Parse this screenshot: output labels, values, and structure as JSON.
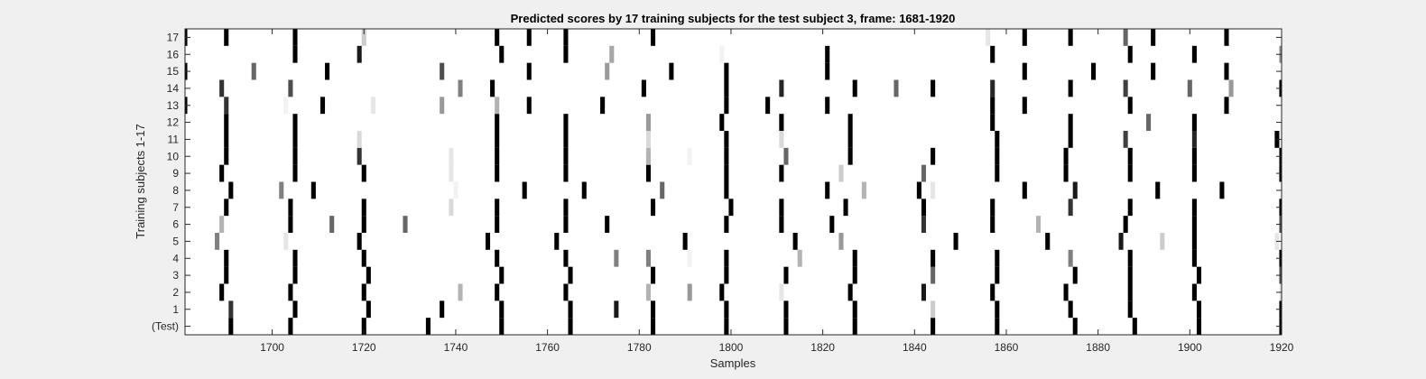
{
  "chart_data": {
    "type": "heatmap",
    "title": "Predicted scores by 17 training subjects for the test subject 3, frame: 1681-1920",
    "xlabel": "Samples",
    "ylabel": "Training subjects 1-17",
    "xlim": [
      1681,
      1920
    ],
    "x_ticks": [
      1700,
      1720,
      1740,
      1760,
      1780,
      1800,
      1820,
      1840,
      1860,
      1880,
      1900,
      1920
    ],
    "y_tick_labels": [
      "(Test)",
      "1",
      "2",
      "3",
      "4",
      "5",
      "6",
      "7",
      "8",
      "9",
      "10",
      "11",
      "12",
      "13",
      "14",
      "15",
      "16",
      "17"
    ],
    "colormap": "gray (white = 0, black = 1)",
    "grid": false,
    "rows": [
      {
        "label": "(Test)",
        "marks": [
          [
            1691,
            1.0
          ],
          [
            1704,
            1.0
          ],
          [
            1720,
            1.0
          ],
          [
            1734,
            1.0
          ],
          [
            1750,
            1.0
          ],
          [
            1765,
            1.0
          ],
          [
            1783,
            1.0
          ],
          [
            1799,
            1.0
          ],
          [
            1812,
            1.0
          ],
          [
            1827,
            1.0
          ],
          [
            1844,
            1.0
          ],
          [
            1858,
            1.0
          ],
          [
            1875,
            1.0
          ],
          [
            1888,
            1.0
          ],
          [
            1902,
            1.0
          ],
          [
            1920,
            1.0
          ]
        ]
      },
      {
        "label": "1",
        "marks": [
          [
            1691,
            0.8
          ],
          [
            1705,
            1.0
          ],
          [
            1721,
            1.0
          ],
          [
            1737,
            1.0
          ],
          [
            1750,
            1.0
          ],
          [
            1765,
            1.0
          ],
          [
            1775,
            0.9
          ],
          [
            1783,
            1.0
          ],
          [
            1799,
            1.0
          ],
          [
            1812,
            1.0
          ],
          [
            1827,
            1.0
          ],
          [
            1844,
            0.2
          ],
          [
            1858,
            1.0
          ],
          [
            1874,
            1.0
          ],
          [
            1887,
            1.0
          ],
          [
            1902,
            1.0
          ],
          [
            1920,
            1.0
          ]
        ]
      },
      {
        "label": "2",
        "marks": [
          [
            1689,
            1.0
          ],
          [
            1704,
            1.0
          ],
          [
            1720,
            1.0
          ],
          [
            1741,
            0.3
          ],
          [
            1749,
            1.0
          ],
          [
            1764,
            1.0
          ],
          [
            1782,
            0.3
          ],
          [
            1791,
            0.4
          ],
          [
            1798,
            1.0
          ],
          [
            1811,
            0.1
          ],
          [
            1826,
            1.0
          ],
          [
            1842,
            0.9
          ],
          [
            1857,
            1.0
          ],
          [
            1873,
            1.0
          ],
          [
            1887,
            1.0
          ],
          [
            1901,
            1.0
          ],
          [
            1920,
            0.1
          ]
        ]
      },
      {
        "label": "3",
        "marks": [
          [
            1690,
            1.0
          ],
          [
            1705,
            1.0
          ],
          [
            1721,
            1.0
          ],
          [
            1750,
            1.0
          ],
          [
            1765,
            1.0
          ],
          [
            1783,
            1.0
          ],
          [
            1799,
            1.0
          ],
          [
            1812,
            1.0
          ],
          [
            1827,
            1.0
          ],
          [
            1844,
            0.6
          ],
          [
            1858,
            1.0
          ],
          [
            1875,
            1.0
          ],
          [
            1887,
            1.0
          ],
          [
            1902,
            1.0
          ],
          [
            1920,
            0.7
          ]
        ]
      },
      {
        "label": "4",
        "marks": [
          [
            1690,
            1.0
          ],
          [
            1705,
            1.0
          ],
          [
            1720,
            1.0
          ],
          [
            1749,
            1.0
          ],
          [
            1764,
            1.0
          ],
          [
            1775,
            0.5
          ],
          [
            1782,
            0.5
          ],
          [
            1791,
            0.05
          ],
          [
            1799,
            1.0
          ],
          [
            1815,
            0.3
          ],
          [
            1827,
            1.0
          ],
          [
            1844,
            1.0
          ],
          [
            1858,
            1.0
          ],
          [
            1874,
            0.5
          ],
          [
            1887,
            1.0
          ],
          [
            1901,
            1.0
          ],
          [
            1920,
            1.0
          ]
        ]
      },
      {
        "label": "5",
        "marks": [
          [
            1688,
            0.5
          ],
          [
            1703,
            0.1
          ],
          [
            1719,
            1.0
          ],
          [
            1747,
            1.0
          ],
          [
            1762,
            1.0
          ],
          [
            1790,
            1.0
          ],
          [
            1814,
            1.0
          ],
          [
            1824,
            0.4
          ],
          [
            1849,
            1.0
          ],
          [
            1869,
            1.0
          ],
          [
            1885,
            0.9
          ],
          [
            1894,
            0.2
          ],
          [
            1901,
            1.0
          ],
          [
            1919,
            0.1
          ]
        ]
      },
      {
        "label": "6",
        "marks": [
          [
            1689,
            0.3
          ],
          [
            1704,
            1.0
          ],
          [
            1713,
            0.6
          ],
          [
            1720,
            1.0
          ],
          [
            1729,
            0.6
          ],
          [
            1749,
            1.0
          ],
          [
            1764,
            1.0
          ],
          [
            1773,
            1.0
          ],
          [
            1799,
            1.0
          ],
          [
            1811,
            1.0
          ],
          [
            1822,
            1.0
          ],
          [
            1842,
            0.8
          ],
          [
            1857,
            1.0
          ],
          [
            1867,
            0.3
          ],
          [
            1886,
            1.0
          ],
          [
            1901,
            1.0
          ],
          [
            1920,
            0.7
          ]
        ]
      },
      {
        "label": "7",
        "marks": [
          [
            1690,
            1.0
          ],
          [
            1704,
            1.0
          ],
          [
            1720,
            1.0
          ],
          [
            1739,
            0.15
          ],
          [
            1749,
            1.0
          ],
          [
            1764,
            1.0
          ],
          [
            1783,
            1.0
          ],
          [
            1800,
            1.0
          ],
          [
            1811,
            1.0
          ],
          [
            1825,
            1.0
          ],
          [
            1842,
            1.0
          ],
          [
            1857,
            1.0
          ],
          [
            1874,
            0.8
          ],
          [
            1887,
            1.0
          ],
          [
            1901,
            1.0
          ],
          [
            1920,
            1.0
          ]
        ]
      },
      {
        "label": "8",
        "marks": [
          [
            1691,
            1.0
          ],
          [
            1702,
            0.5
          ],
          [
            1709,
            1.0
          ],
          [
            1740,
            0.05
          ],
          [
            1755,
            1.0
          ],
          [
            1768,
            1.0
          ],
          [
            1785,
            0.6
          ],
          [
            1799,
            1.0
          ],
          [
            1821,
            1.0
          ],
          [
            1829,
            0.3
          ],
          [
            1841,
            1.0
          ],
          [
            1844,
            0.1
          ],
          [
            1864,
            1.0
          ],
          [
            1875,
            0.9
          ],
          [
            1893,
            1.0
          ],
          [
            1907,
            1.0
          ]
        ]
      },
      {
        "label": "9",
        "marks": [
          [
            1689,
            1.0
          ],
          [
            1705,
            1.0
          ],
          [
            1720,
            1.0
          ],
          [
            1739,
            0.1
          ],
          [
            1749,
            1.0
          ],
          [
            1764,
            1.0
          ],
          [
            1782,
            1.0
          ],
          [
            1799,
            1.0
          ],
          [
            1811,
            1.0
          ],
          [
            1824,
            0.2
          ],
          [
            1842,
            0.6
          ],
          [
            1858,
            1.0
          ],
          [
            1873,
            1.0
          ],
          [
            1887,
            1.0
          ],
          [
            1901,
            1.0
          ],
          [
            1920,
            1.0
          ]
        ]
      },
      {
        "label": "10",
        "marks": [
          [
            1690,
            1.0
          ],
          [
            1705,
            1.0
          ],
          [
            1719,
            0.8
          ],
          [
            1739,
            0.1
          ],
          [
            1749,
            1.0
          ],
          [
            1764,
            1.0
          ],
          [
            1782,
            0.3
          ],
          [
            1791,
            0.05
          ],
          [
            1799,
            1.0
          ],
          [
            1812,
            0.6
          ],
          [
            1826,
            1.0
          ],
          [
            1844,
            1.0
          ],
          [
            1858,
            1.0
          ],
          [
            1873,
            1.0
          ],
          [
            1887,
            1.0
          ],
          [
            1901,
            1.0
          ],
          [
            1920,
            1.0
          ]
        ]
      },
      {
        "label": "11",
        "marks": [
          [
            1690,
            1.0
          ],
          [
            1705,
            1.0
          ],
          [
            1719,
            0.15
          ],
          [
            1749,
            1.0
          ],
          [
            1764,
            1.0
          ],
          [
            1782,
            0.15
          ],
          [
            1799,
            1.0
          ],
          [
            1811,
            0.15
          ],
          [
            1826,
            1.0
          ],
          [
            1858,
            1.0
          ],
          [
            1874,
            1.0
          ],
          [
            1886,
            0.75
          ],
          [
            1901,
            0.85
          ],
          [
            1919,
            1.0
          ]
        ]
      },
      {
        "label": "12",
        "marks": [
          [
            1690,
            1.0
          ],
          [
            1705,
            1.0
          ],
          [
            1749,
            1.0
          ],
          [
            1764,
            1.0
          ],
          [
            1782,
            0.4
          ],
          [
            1798,
            1.0
          ],
          [
            1811,
            1.0
          ],
          [
            1826,
            1.0
          ],
          [
            1857,
            1.0
          ],
          [
            1874,
            1.0
          ],
          [
            1891,
            0.6
          ],
          [
            1901,
            1.0
          ]
        ]
      },
      {
        "label": "13",
        "marks": [
          [
            1681,
            1.0
          ],
          [
            1690,
            0.8
          ],
          [
            1703,
            0.05
          ],
          [
            1711,
            1.0
          ],
          [
            1722,
            0.1
          ],
          [
            1737,
            0.4
          ],
          [
            1749,
            0.3
          ],
          [
            1756,
            1.0
          ],
          [
            1772,
            1.0
          ],
          [
            1799,
            1.0
          ],
          [
            1808,
            1.0
          ],
          [
            1821,
            1.0
          ],
          [
            1857,
            1.0
          ],
          [
            1864,
            1.0
          ],
          [
            1887,
            1.0
          ],
          [
            1908,
            1.0
          ]
        ]
      },
      {
        "label": "14",
        "marks": [
          [
            1689,
            0.8
          ],
          [
            1704,
            0.7
          ],
          [
            1741,
            0.5
          ],
          [
            1748,
            1.0
          ],
          [
            1781,
            1.0
          ],
          [
            1799,
            1.0
          ],
          [
            1811,
            0.85
          ],
          [
            1827,
            1.0
          ],
          [
            1836,
            0.6
          ],
          [
            1844,
            1.0
          ],
          [
            1857,
            0.85
          ],
          [
            1874,
            1.0
          ],
          [
            1886,
            0.75
          ],
          [
            1900,
            0.6
          ],
          [
            1909,
            0.4
          ],
          [
            1920,
            1.0
          ]
        ]
      },
      {
        "label": "15",
        "marks": [
          [
            1681,
            1.0
          ],
          [
            1696,
            0.6
          ],
          [
            1712,
            1.0
          ],
          [
            1737,
            0.7
          ],
          [
            1756,
            1.0
          ],
          [
            1773,
            0.4
          ],
          [
            1787,
            1.0
          ],
          [
            1799,
            1.0
          ],
          [
            1821,
            1.0
          ],
          [
            1864,
            1.0
          ],
          [
            1879,
            1.0
          ],
          [
            1892,
            1.0
          ],
          [
            1908,
            1.0
          ]
        ]
      },
      {
        "label": "16",
        "marks": [
          [
            1705,
            1.0
          ],
          [
            1719,
            0.9
          ],
          [
            1750,
            1.0
          ],
          [
            1764,
            1.0
          ],
          [
            1774,
            0.35
          ],
          [
            1798,
            0.05
          ],
          [
            1821,
            1.0
          ],
          [
            1857,
            1.0
          ],
          [
            1887,
            1.0
          ],
          [
            1901,
            1.0
          ],
          [
            1920,
            0.45
          ]
        ]
      },
      {
        "label": "17",
        "marks": [
          [
            1681,
            1.0
          ],
          [
            1690,
            1.0
          ],
          [
            1705,
            1.0
          ],
          [
            1720,
            0.2
          ],
          [
            1749,
            1.0
          ],
          [
            1756,
            1.0
          ],
          [
            1764,
            1.0
          ],
          [
            1783,
            1.0
          ],
          [
            1856,
            0.1
          ],
          [
            1864,
            1.0
          ],
          [
            1874,
            1.0
          ],
          [
            1886,
            0.6
          ],
          [
            1892,
            1.0
          ],
          [
            1908,
            1.0
          ]
        ]
      }
    ]
  }
}
